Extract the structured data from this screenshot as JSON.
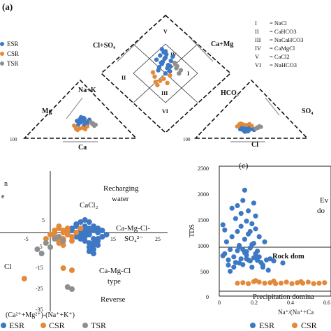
{
  "colors": {
    "ESR": "#3d78c4",
    "CSR": "#e28a3a",
    "TSR": "#8f8f8f"
  },
  "panel_a": {
    "label": "(a)",
    "legend": [
      "ESR",
      "CSR",
      "TSR"
    ],
    "classes": [
      {
        "num": "I",
        "text": "= NaCl"
      },
      {
        "num": "II",
        "text": "= CaHCO3"
      },
      {
        "num": "III",
        "text": "= NaCaHCO3"
      },
      {
        "num": "IV",
        "text": "= CaMgCl"
      },
      {
        "num": "V",
        "text": "= CaCl2"
      },
      {
        "num": "VI",
        "text": "= NaHCO3"
      }
    ],
    "labels": {
      "cl_so4": "Cl+SO₄",
      "ca_mg": "Ca+Mg",
      "na_k": "Na+K",
      "hco3": "HCO₃",
      "so4": "SO₄",
      "mg": "Mg",
      "ca": "Ca",
      "cl": "Cl",
      "tick_left": "100",
      "tick_right": "100",
      "r1": "I",
      "r2": "II",
      "r3": "III",
      "r4": "IV",
      "r5": "V",
      "r6": "VI"
    }
  },
  "panel_b": {
    "labels": {
      "top_left_1": "n",
      "top_left_2": "e",
      "recharging_1": "Recharging",
      "recharging_2": "water",
      "cacl2": "CaCl₂",
      "camgcl_so4_1": "Ca-Mg-Cl-",
      "camgcl_so4_2": "SO₄²⁻",
      "camgcl_1": "Ca-Mg-Cl",
      "camgcl_2": "type",
      "reverse": "Reverse",
      "left_cl": "Cl",
      "xlabel": "(Ca²⁺+Mg²⁺)-(Na⁺+K⁺)"
    },
    "ticks": {
      "y_pos": "5",
      "y_neg5": "-5",
      "y_neg15": "-15",
      "y_neg25": "-25",
      "y_neg35": "-35",
      "x_neg5": "-5",
      "x_15": "15",
      "x_25": "25"
    },
    "legend": [
      "ESR",
      "CSR",
      "TSR"
    ]
  },
  "panel_c": {
    "label": "(c)",
    "ylabel": "TDS",
    "yticks": [
      "2500",
      "2000",
      "1500",
      "1000",
      "500",
      "0"
    ],
    "xticks": [
      "0",
      "0.2",
      "0.4",
      "0.6"
    ],
    "xlabel": "Na⁺/(Na⁺+Ca",
    "annotations": {
      "evap_1": "Ev",
      "evap_2": "do",
      "rock": "Rock dom",
      "precip": "Precipitation domina"
    },
    "legend": [
      "ESR",
      "CSR"
    ]
  },
  "chart_data": [
    {
      "type": "scatter",
      "title": "",
      "subtitle": "Piper trilinear diagram",
      "series": [
        {
          "name": "ESR",
          "x": [
            0.45,
            0.5,
            0.55,
            0.4,
            0.48,
            0.52,
            0.44,
            0.56,
            0.5,
            0.46,
            0.53,
            0.49,
            0.42,
            0.58,
            0.47,
            0.51,
            0.43,
            0.55,
            0.5,
            0.46
          ],
          "y": [
            0.55,
            0.6,
            0.52,
            0.58,
            0.65,
            0.5,
            0.62,
            0.57,
            0.45,
            0.68,
            0.53,
            0.59,
            0.48,
            0.61,
            0.56,
            0.63,
            0.51,
            0.47,
            0.66,
            0.54
          ]
        },
        {
          "name": "CSR",
          "x": [
            0.38,
            0.44,
            0.52,
            0.36,
            0.48,
            0.41,
            0.55,
            0.39
          ],
          "y": [
            0.42,
            0.38,
            0.36,
            0.46,
            0.4,
            0.34,
            0.43,
            0.37
          ]
        },
        {
          "name": "TSR",
          "x": [
            0.62,
            0.65,
            0.6,
            0.67,
            0.63
          ],
          "y": [
            0.5,
            0.45,
            0.55,
            0.48,
            0.52
          ]
        }
      ]
    },
    {
      "type": "scatter",
      "title": "",
      "xlabel": "(Ca²⁺+Mg²⁺)-(Na⁺+K⁺)",
      "ylabel": "",
      "xlim": [
        -15,
        25
      ],
      "ylim": [
        -35,
        10
      ],
      "series": [
        {
          "name": "ESR",
          "x": [
            5,
            6,
            7,
            8,
            9,
            10,
            11,
            12,
            6,
            7,
            8,
            9,
            10,
            11,
            4,
            5,
            7,
            8,
            9,
            10,
            11,
            12,
            13,
            6,
            8,
            9,
            10,
            7,
            8,
            9,
            11,
            10,
            8,
            9,
            10,
            9,
            10,
            11,
            12,
            8,
            -16
          ],
          "y": [
            2,
            3,
            1,
            0,
            -1,
            1,
            0,
            -2,
            4,
            5,
            3,
            2,
            -3,
            -4,
            0,
            1,
            -1,
            -2,
            -5,
            -6,
            -3,
            1,
            -1,
            -2,
            -4,
            -7,
            -8,
            -3,
            0,
            1,
            2,
            -5,
            6,
            5,
            3,
            -9,
            -10,
            -6,
            -2,
            2,
            -2
          ]
        },
        {
          "name": "CSR",
          "x": [
            1,
            2,
            3,
            4,
            0,
            1,
            2,
            3,
            4,
            5,
            2,
            3,
            1,
            4,
            3,
            5,
            -1,
            6,
            7,
            2,
            -13,
            -6,
            3,
            5,
            -16
          ],
          "y": [
            1,
            2,
            0,
            -1,
            -1,
            -2,
            3,
            -3,
            1,
            -4,
            -5,
            -6,
            0,
            2,
            1,
            -2,
            -3,
            0,
            2,
            -4,
            -3,
            -22,
            -17,
            -18,
            -2
          ]
        },
        {
          "name": "TSR",
          "x": [
            -1,
            0,
            -2,
            1,
            2,
            4,
            5,
            -3,
            3
          ],
          "y": [
            -5,
            -7,
            -10,
            -3,
            -2,
            -26,
            -27,
            -8,
            -4
          ]
        }
      ]
    },
    {
      "type": "scatter",
      "title": "",
      "xlabel": "Na⁺/(Na⁺+Ca",
      "ylabel": "TDS",
      "xlim": [
        0,
        0.6
      ],
      "ylim": [
        0,
        2500
      ],
      "series": [
        {
          "name": "ESR",
          "x": [
            0.02,
            0.03,
            0.05,
            0.06,
            0.08,
            0.09,
            0.1,
            0.11,
            0.12,
            0.13,
            0.14,
            0.15,
            0.16,
            0.17,
            0.18,
            0.19,
            0.2,
            0.21,
            0.22,
            0.23,
            0.24,
            0.26,
            0.28,
            0.3,
            0.04,
            0.07,
            0.1,
            0.12,
            0.14,
            0.16,
            0.18,
            0.2,
            0.22,
            0.25,
            0.05,
            0.08,
            0.11,
            0.13,
            0.15,
            0.17,
            0.19,
            0.21,
            0.09,
            0.12,
            0.15,
            0.18,
            0.2,
            0.07,
            0.1,
            0.13,
            0.16,
            0.19,
            0.06,
            0.14,
            0.17,
            0.03,
            0.11,
            0.24,
            0.27,
            0.35,
            0.02,
            0.15,
            0.2
          ],
          "y": [
            780,
            820,
            700,
            900,
            760,
            650,
            880,
            950,
            720,
            610,
            840,
            790,
            700,
            680,
            560,
            740,
            820,
            690,
            760,
            650,
            600,
            700,
            720,
            680,
            1050,
            1150,
            1250,
            1350,
            1100,
            1200,
            1000,
            1300,
            1150,
            1050,
            600,
            560,
            640,
            900,
            860,
            930,
            1020,
            870,
            1500,
            1600,
            1450,
            1400,
            1550,
            1700,
            1750,
            1850,
            1650,
            1800,
            480,
            2050,
            1250,
            1280,
            980,
            560,
            500,
            640,
            1380,
            720,
            760
          ]
        },
        {
          "name": "CSR",
          "x": [
            0.1,
            0.13,
            0.16,
            0.19,
            0.22,
            0.25,
            0.28,
            0.31,
            0.34,
            0.37,
            0.4,
            0.43,
            0.46,
            0.49,
            0.52,
            0.55,
            0.58,
            0.2,
            0.3,
            0.45
          ],
          "y": [
            250,
            260,
            240,
            280,
            270,
            250,
            260,
            240,
            250,
            270,
            240,
            260,
            250,
            270,
            240,
            250,
            260,
            300,
            290,
            280
          ]
        }
      ]
    }
  ]
}
